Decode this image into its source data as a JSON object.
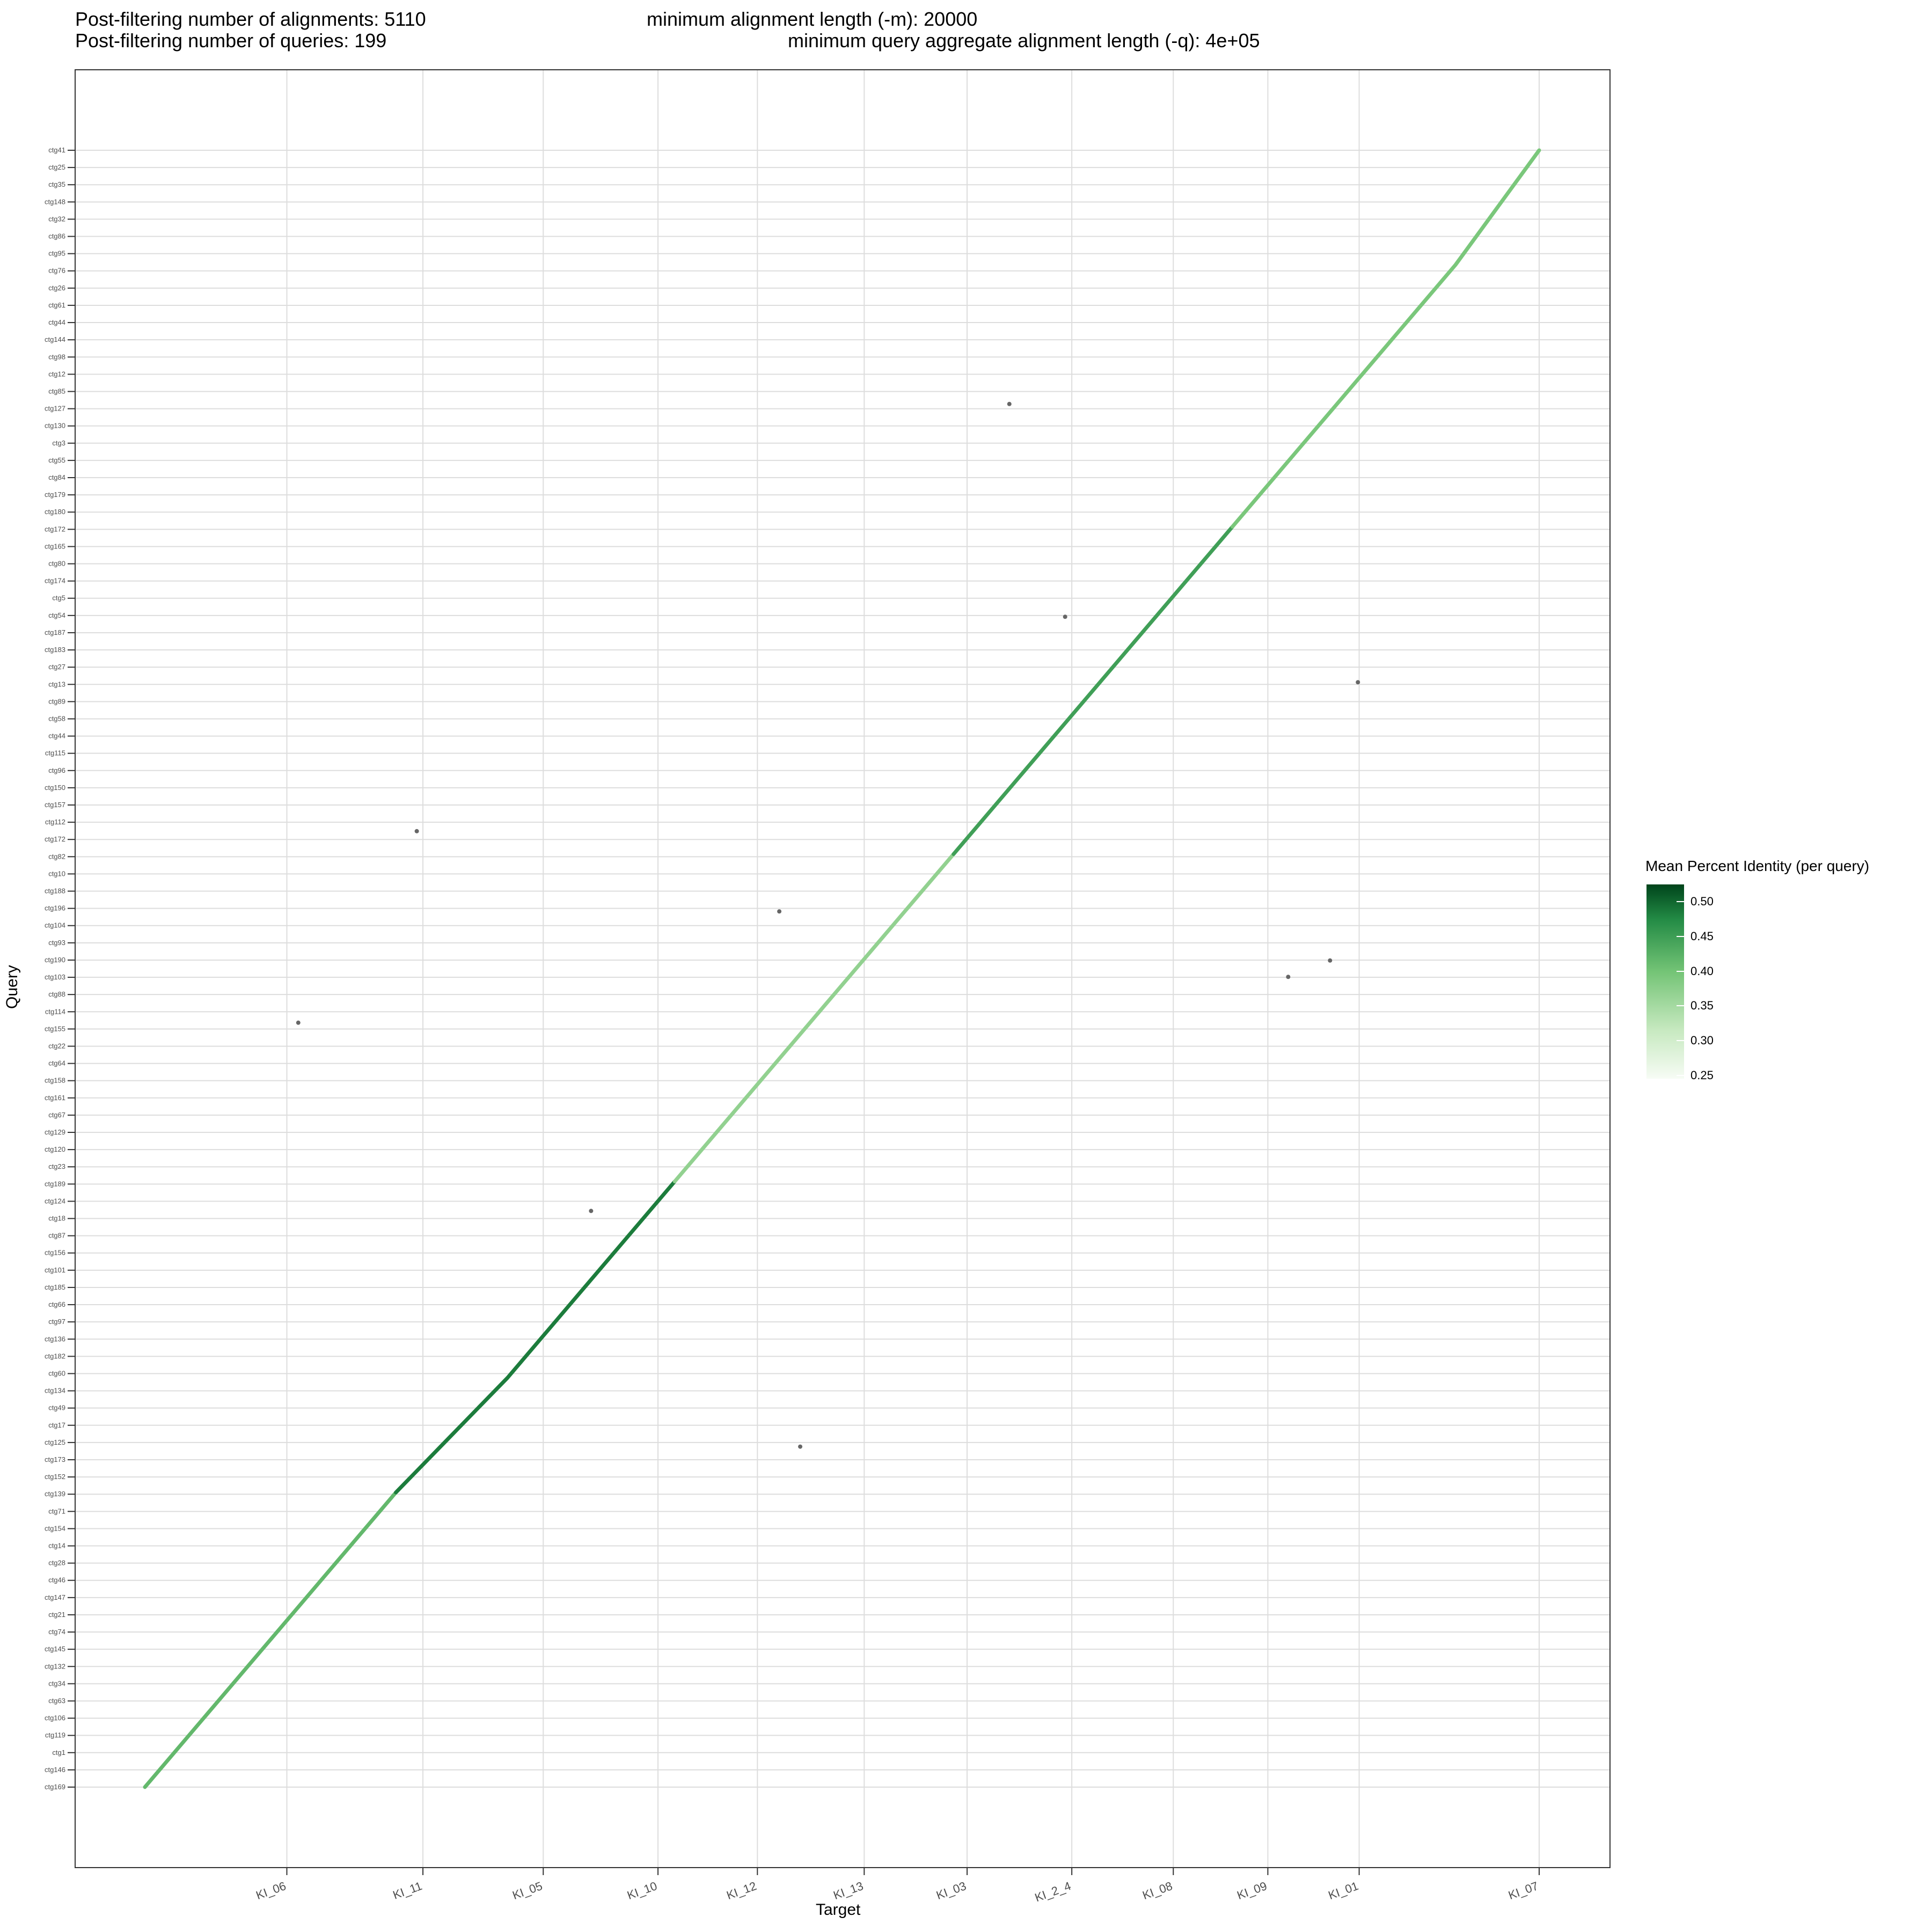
{
  "header": {
    "alignments": "Post-filtering number of alignments: 5110",
    "queries": "Post-filtering number of queries: 199",
    "min_len": "minimum alignment length (-m): 20000",
    "min_agg": "minimum query aggregate alignment length (-q): 4e+05"
  },
  "chart_data": {
    "type": "scatter",
    "xlabel": "Target",
    "ylabel": "Query",
    "x_tick_labels": [
      "KI_06",
      "KI_11",
      "KI_05",
      "KI_10",
      "KI_12",
      "KI_13",
      "KI_03",
      "KI_2_4",
      "KI_08",
      "KI_09",
      "KI_01",
      "KI_07"
    ],
    "x_breaks": [
      0.1018,
      0.1994,
      0.2857,
      0.368,
      0.4393,
      0.5159,
      0.5897,
      0.6648,
      0.7376,
      0.8054,
      0.8709,
      1.0
    ],
    "y_tick_labels": [
      "ctg41",
      "ctg25",
      "ctg35",
      "ctg148",
      "ctg32",
      "ctg86",
      "ctg95",
      "ctg76",
      "ctg26",
      "ctg61",
      "ctg44",
      "ctg144",
      "ctg98",
      "ctg12",
      "ctg85",
      "ctg127",
      "ctg130",
      "ctg3",
      "ctg55",
      "ctg84",
      "ctg179",
      "ctg180",
      "ctg172",
      "ctg165",
      "ctg80",
      "ctg174",
      "ctg5",
      "ctg54",
      "ctg187",
      "ctg183",
      "ctg27",
      "ctg13",
      "ctg89",
      "ctg58",
      "ctg44",
      "ctg115",
      "ctg96",
      "ctg150",
      "ctg157",
      "ctg112",
      "ctg172",
      "ctg82",
      "ctg10",
      "ctg188",
      "ctg196",
      "ctg104",
      "ctg93",
      "ctg190",
      "ctg103",
      "ctg88",
      "ctg114",
      "ctg155",
      "ctg22",
      "ctg64",
      "ctg158",
      "ctg161",
      "ctg67",
      "ctg129",
      "ctg120",
      "ctg23",
      "ctg189",
      "ctg124",
      "ctg18",
      "ctg87",
      "ctg156",
      "ctg101",
      "ctg185",
      "ctg66",
      "ctg97",
      "ctg136",
      "ctg182",
      "ctg60",
      "ctg134",
      "ctg49",
      "ctg17",
      "ctg125",
      "ctg173",
      "ctg152",
      "ctg139",
      "ctg71",
      "ctg154",
      "ctg14",
      "ctg28",
      "ctg46",
      "ctg147",
      "ctg21",
      "ctg74",
      "ctg145",
      "ctg132",
      "ctg34",
      "ctg63",
      "ctg106",
      "ctg119",
      "ctg1",
      "ctg146",
      "ctg169"
    ],
    "legend": {
      "title": "Mean Percent Identity (per query)",
      "ticks": [
        "0.50",
        "0.45",
        "0.40",
        "0.35",
        "0.30",
        "0.25"
      ],
      "tick_values": [
        0.5,
        0.45,
        0.4,
        0.35,
        0.3,
        0.25
      ],
      "range": [
        0.245,
        0.525
      ],
      "colors": [
        "#f7fcf5",
        "#c7e9c0",
        "#74c476",
        "#238b45",
        "#00441b"
      ]
    },
    "series": [
      {
        "x": [
          0.0,
          0.03,
          0.06,
          0.09,
          0.12,
          0.15,
          0.18
        ],
        "y": [
          0.0,
          0.03,
          0.06,
          0.09,
          0.12,
          0.15,
          0.18
        ],
        "identity": 0.4
      },
      {
        "x": [
          0.18,
          0.22,
          0.26,
          0.3,
          0.34,
          0.38
        ],
        "y": [
          0.18,
          0.215,
          0.25,
          0.29,
          0.33,
          0.37
        ],
        "identity": 0.47
      },
      {
        "x": [
          0.38,
          0.42,
          0.46,
          0.5,
          0.54,
          0.58
        ],
        "y": [
          0.37,
          0.41,
          0.45,
          0.49,
          0.53,
          0.57
        ],
        "identity": 0.36
      },
      {
        "x": [
          0.58,
          0.62,
          0.66,
          0.7,
          0.74,
          0.78
        ],
        "y": [
          0.57,
          0.61,
          0.65,
          0.69,
          0.73,
          0.77
        ],
        "identity": 0.43
      },
      {
        "x": [
          0.78,
          0.82,
          0.86,
          0.9,
          0.94,
          0.97,
          1.0
        ],
        "y": [
          0.77,
          0.81,
          0.85,
          0.89,
          0.93,
          0.965,
          1.0
        ],
        "identity": 0.38
      }
    ],
    "outliers": [
      {
        "x": 0.62,
        "y": 0.845
      },
      {
        "x": 0.195,
        "y": 0.584
      },
      {
        "x": 0.455,
        "y": 0.535
      },
      {
        "x": 0.66,
        "y": 0.715
      },
      {
        "x": 0.85,
        "y": 0.505
      },
      {
        "x": 0.82,
        "y": 0.495
      },
      {
        "x": 0.32,
        "y": 0.352
      },
      {
        "x": 0.47,
        "y": 0.208
      },
      {
        "x": 0.11,
        "y": 0.467
      },
      {
        "x": 0.87,
        "y": 0.675
      }
    ]
  }
}
